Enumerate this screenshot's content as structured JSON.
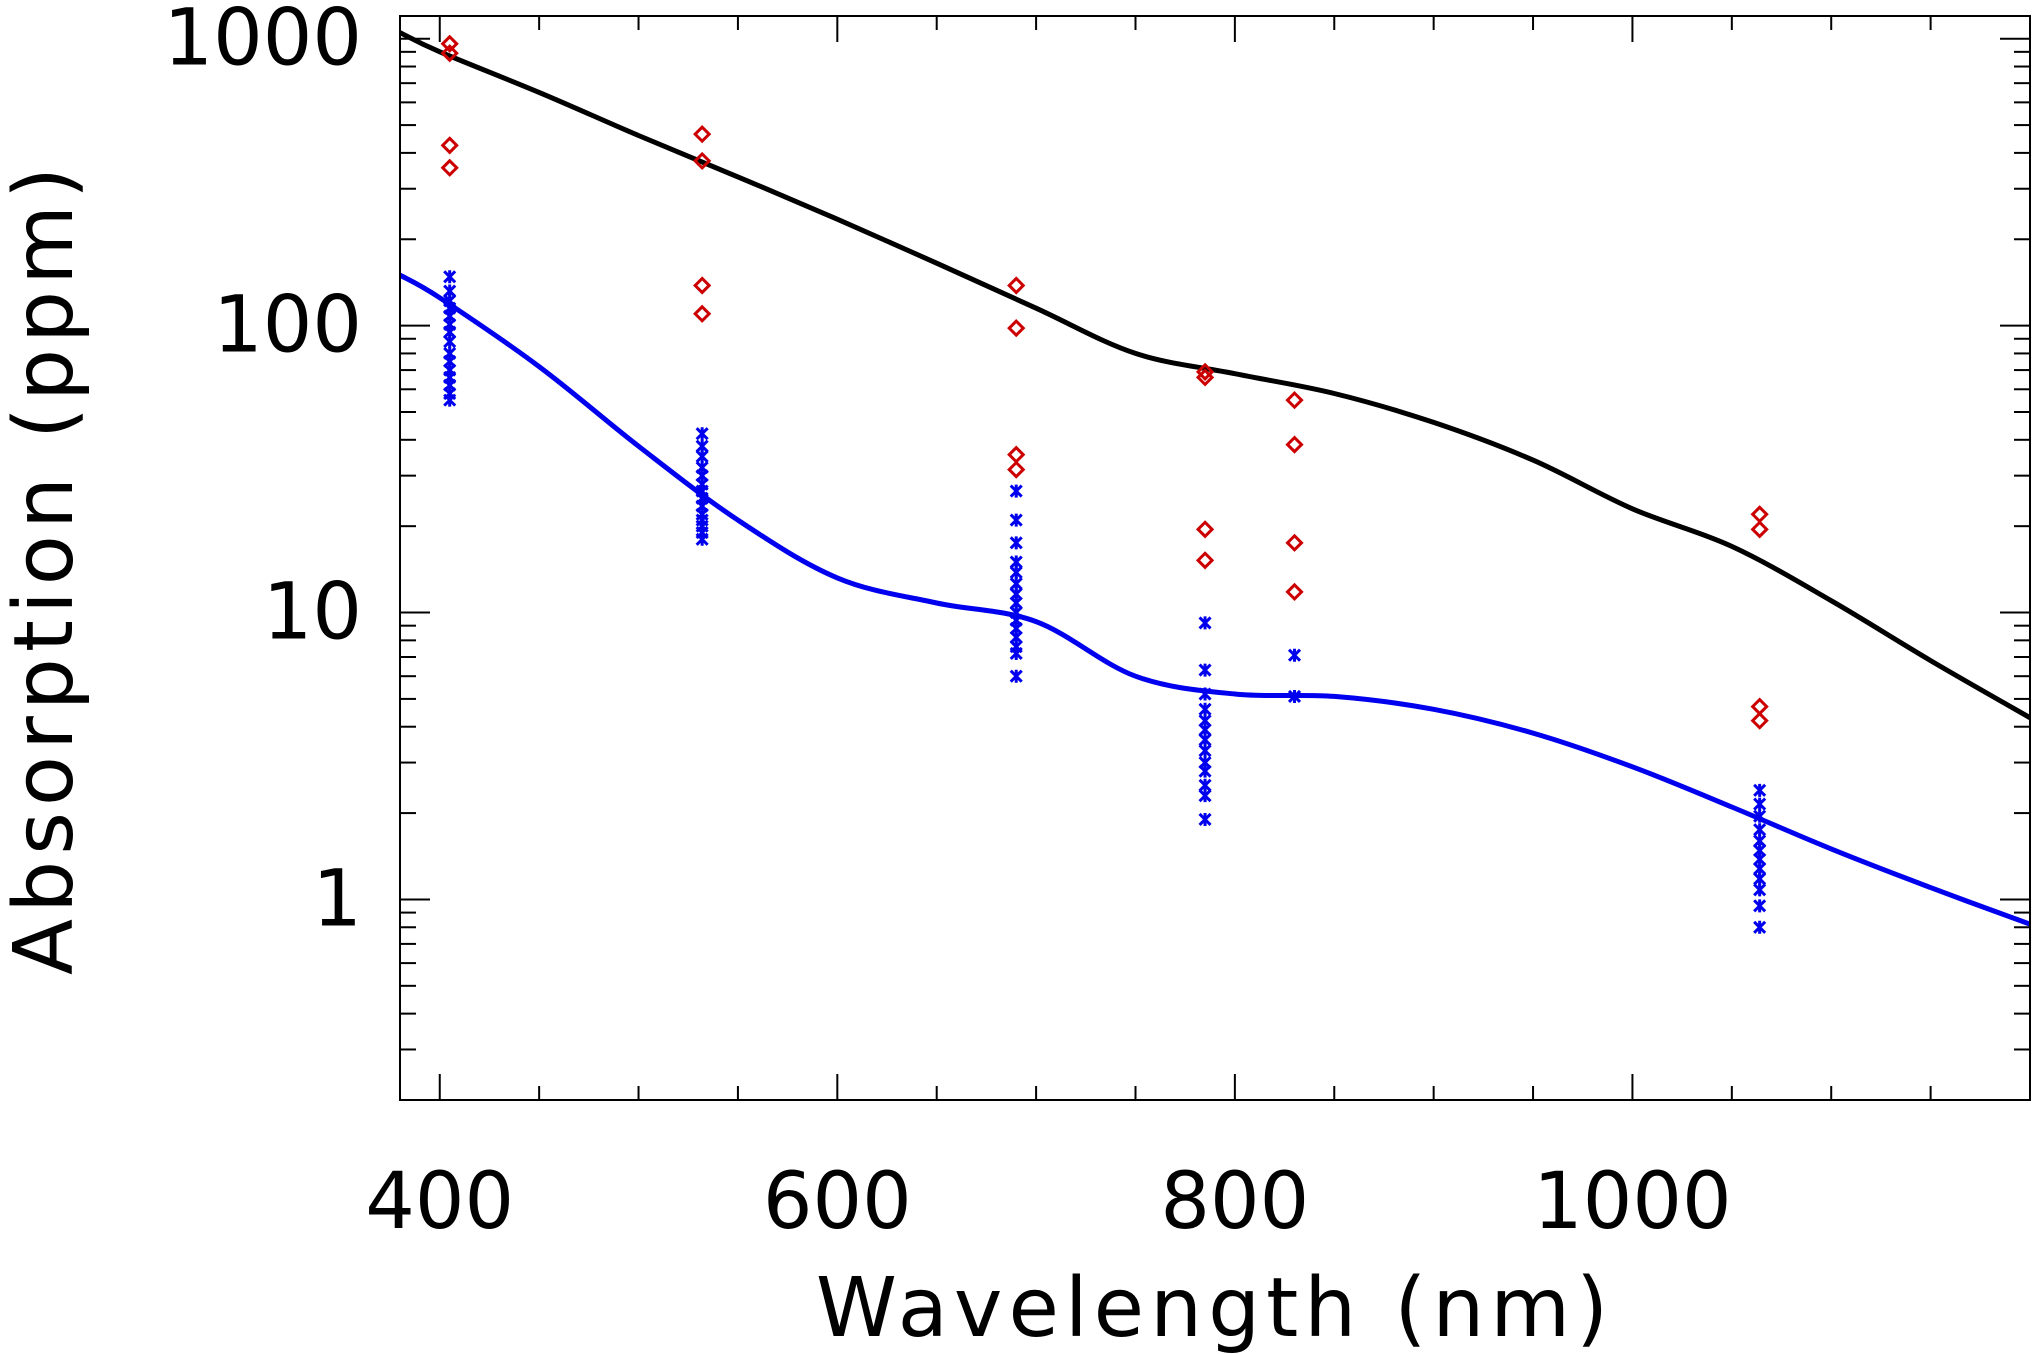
{
  "chart_data": {
    "type": "scatter",
    "title": "",
    "xlabel": "Wavelength (nm)",
    "ylabel": "Absorption (ppm)",
    "xscale": "linear",
    "yscale": "log",
    "xlim": [
      380,
      1200
    ],
    "ylim": [
      0.2,
      1200
    ],
    "x_ticks": [
      400,
      600,
      800,
      1000
    ],
    "x_tick_labels": [
      "400",
      "600",
      "800",
      "1000"
    ],
    "y_ticks": [
      1,
      10,
      100,
      1000
    ],
    "y_tick_labels": [
      "1",
      "10",
      "100",
      "1000"
    ],
    "grid": false,
    "series": [
      {
        "name": "upper curve",
        "kind": "line",
        "color": "#000000",
        "x": [
          380,
          400,
          450,
          500,
          550,
          600,
          650,
          700,
          750,
          800,
          850,
          900,
          950,
          1000,
          1050,
          1100,
          1150,
          1200
        ],
        "y": [
          1050,
          900,
          650,
          460,
          330,
          235,
          165,
          115,
          80,
          68,
          58,
          46,
          34,
          23,
          17,
          11,
          6.8,
          4.3
        ]
      },
      {
        "name": "lower curve",
        "kind": "line",
        "color": "#0000ee",
        "x": [
          380,
          400,
          450,
          500,
          550,
          600,
          650,
          700,
          750,
          800,
          850,
          900,
          950,
          1000,
          1050,
          1100,
          1150,
          1200
        ],
        "y": [
          150,
          125,
          72,
          38,
          21,
          13.2,
          10.8,
          9.3,
          6.0,
          5.2,
          5.1,
          4.6,
          3.8,
          2.9,
          2.1,
          1.5,
          1.1,
          0.82
        ]
      },
      {
        "name": "red diamonds",
        "kind": "markers",
        "marker": "diamond",
        "color": "#cc0000",
        "points": [
          [
            405,
            960
          ],
          [
            405,
            890
          ],
          [
            405,
            425
          ],
          [
            405,
            355
          ],
          [
            532,
            465
          ],
          [
            532,
            375
          ],
          [
            532,
            138
          ],
          [
            532,
            110
          ],
          [
            690,
            138
          ],
          [
            690,
            98
          ],
          [
            690,
            35.5
          ],
          [
            690,
            31.5
          ],
          [
            785,
            69
          ],
          [
            785,
            66
          ],
          [
            785,
            19.5
          ],
          [
            785,
            15.2
          ],
          [
            830,
            55
          ],
          [
            830,
            38.5
          ],
          [
            830,
            17.5
          ],
          [
            830,
            11.8
          ],
          [
            1064,
            22
          ],
          [
            1064,
            19.5
          ],
          [
            1064,
            4.7
          ],
          [
            1064,
            4.2
          ]
        ]
      },
      {
        "name": "blue crosses",
        "kind": "markers",
        "marker": "x",
        "color": "#0000ee",
        "points": [
          [
            405,
            148
          ],
          [
            405,
            132
          ],
          [
            405,
            122
          ],
          [
            405,
            115
          ],
          [
            405,
            108
          ],
          [
            405,
            101
          ],
          [
            405,
            95
          ],
          [
            405,
            88
          ],
          [
            405,
            80
          ],
          [
            405,
            75
          ],
          [
            405,
            70
          ],
          [
            405,
            66
          ],
          [
            405,
            62
          ],
          [
            405,
            58
          ],
          [
            405,
            55
          ],
          [
            532,
            42
          ],
          [
            532,
            38
          ],
          [
            532,
            35
          ],
          [
            532,
            32
          ],
          [
            532,
            30
          ],
          [
            532,
            28
          ],
          [
            532,
            26.5
          ],
          [
            532,
            25
          ],
          [
            532,
            23.5
          ],
          [
            532,
            22
          ],
          [
            532,
            21
          ],
          [
            532,
            20
          ],
          [
            532,
            19
          ],
          [
            532,
            18
          ],
          [
            690,
            26.5
          ],
          [
            690,
            21
          ],
          [
            690,
            17.5
          ],
          [
            690,
            15
          ],
          [
            690,
            13.8
          ],
          [
            690,
            12.6
          ],
          [
            690,
            11.6
          ],
          [
            690,
            10.8
          ],
          [
            690,
            10
          ],
          [
            690,
            9.4
          ],
          [
            690,
            8.8
          ],
          [
            690,
            8.2
          ],
          [
            690,
            7.6
          ],
          [
            690,
            7.2
          ],
          [
            690,
            6.0
          ],
          [
            785,
            9.2
          ],
          [
            785,
            6.3
          ],
          [
            785,
            5.2
          ],
          [
            785,
            4.6
          ],
          [
            785,
            4.2
          ],
          [
            785,
            3.9
          ],
          [
            785,
            3.6
          ],
          [
            785,
            3.3
          ],
          [
            785,
            3.0
          ],
          [
            785,
            2.8
          ],
          [
            785,
            2.5
          ],
          [
            785,
            2.3
          ],
          [
            785,
            1.9
          ],
          [
            830,
            7.1
          ],
          [
            830,
            5.1
          ],
          [
            1064,
            2.4
          ],
          [
            1064,
            2.15
          ],
          [
            1064,
            1.95
          ],
          [
            1064,
            1.75
          ],
          [
            1064,
            1.6
          ],
          [
            1064,
            1.48
          ],
          [
            1064,
            1.38
          ],
          [
            1064,
            1.28
          ],
          [
            1064,
            1.18
          ],
          [
            1064,
            1.08
          ],
          [
            1064,
            0.95
          ],
          [
            1064,
            0.8
          ]
        ]
      }
    ]
  }
}
